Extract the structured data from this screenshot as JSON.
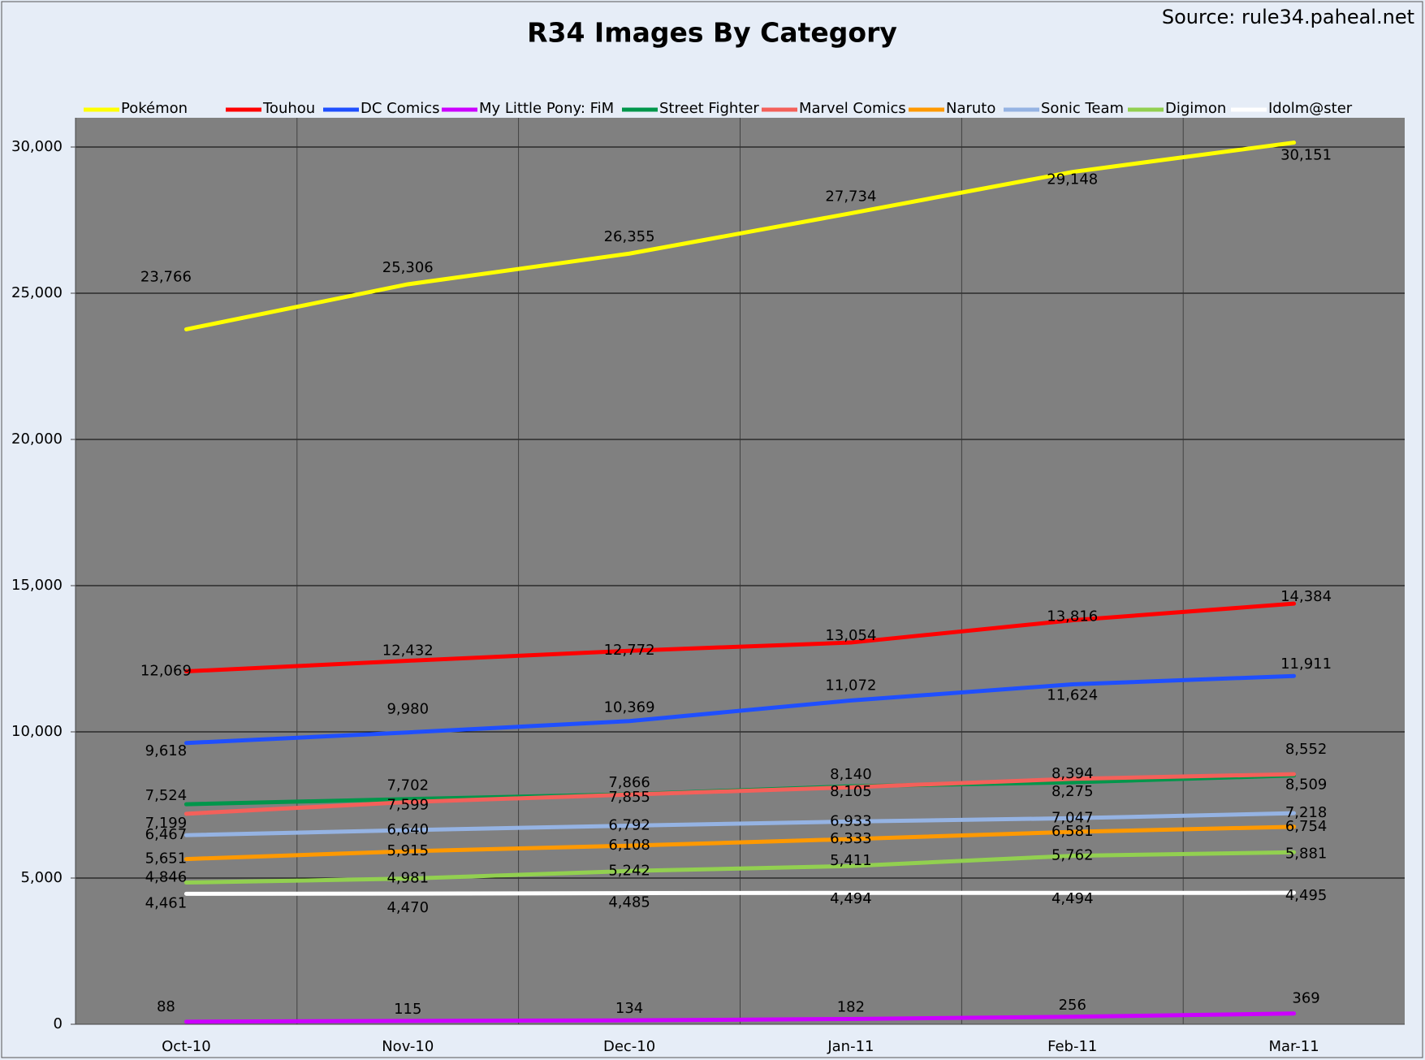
{
  "chart_data": {
    "type": "line",
    "title": "R34 Images By Category",
    "source": "Source: rule34.paheal.net",
    "categories": [
      "Oct-10",
      "Nov-10",
      "Dec-10",
      "Jan-11",
      "Feb-11",
      "Mar-11"
    ],
    "ylim": [
      0,
      31000
    ],
    "yticks": [
      0,
      {
        "value": 5000,
        "label": "5,000"
      },
      {
        "value": 10000,
        "label": "10,000"
      },
      {
        "value": 15000,
        "label": "15,000"
      },
      {
        "value": 20000,
        "label": "20,000"
      },
      {
        "value": 25000,
        "label": "25,000"
      },
      {
        "value": 30000,
        "label": "30,000"
      }
    ],
    "grid": true,
    "series": [
      {
        "name": "Pokémon",
        "color": "#ffff00",
        "values": [
          23766,
          25306,
          26355,
          27734,
          29148,
          30151
        ],
        "value_labels": [
          "23,766",
          "25,306",
          "26,355",
          "27,734",
          "29,148",
          "30,151"
        ]
      },
      {
        "name": "Touhou",
        "color": "#ff0000",
        "values": [
          12069,
          12432,
          12772,
          13054,
          13816,
          14384
        ],
        "value_labels": [
          "12,069",
          "12,432",
          "12,772",
          "13,054",
          "13,816",
          "14,384"
        ]
      },
      {
        "name": "DC Comics",
        "color": "#1f4fff",
        "values": [
          9618,
          9980,
          10369,
          11072,
          11624,
          11911
        ],
        "value_labels": [
          "9,618",
          "9,980",
          "10,369",
          "11,072",
          "11,624",
          "11,911"
        ]
      },
      {
        "name": "My Little Pony: FiM",
        "color": "#cc00ff",
        "values": [
          88,
          115,
          134,
          182,
          256,
          369
        ],
        "value_labels": [
          "88",
          "115",
          "134",
          "182",
          "256",
          "369"
        ]
      },
      {
        "name": "Street Fighter",
        "color": "#00964b",
        "values": [
          7524,
          7702,
          7866,
          8140,
          8275,
          8509
        ],
        "value_labels": [
          "7,524",
          "7,702",
          "7,866",
          "8,140",
          "8,275",
          "8,509"
        ]
      },
      {
        "name": "Marvel Comics",
        "color": "#f4605a",
        "values": [
          7199,
          7599,
          7855,
          8105,
          8394,
          8552
        ],
        "value_labels": [
          "7,199",
          "7,599",
          "7,855",
          "8,105",
          "8,394",
          "8,552"
        ]
      },
      {
        "name": "Naruto",
        "color": "#ff9900",
        "values": [
          5651,
          5915,
          6108,
          6333,
          6581,
          6754
        ],
        "value_labels": [
          "5,651",
          "5,915",
          "6,108",
          "6,333",
          "6,581",
          "6,754"
        ]
      },
      {
        "name": "Sonic Team",
        "color": "#95b3e3",
        "values": [
          6467,
          6640,
          6792,
          6933,
          7047,
          7218
        ],
        "value_labels": [
          "6,467",
          "6,640",
          "6,792",
          "6,933",
          "7,047",
          "7,218"
        ]
      },
      {
        "name": "Digimon",
        "color": "#92d050",
        "values": [
          4846,
          4981,
          5242,
          5411,
          5762,
          5881
        ],
        "value_labels": [
          "4,846",
          "4,981",
          "5,242",
          "5,411",
          "5,762",
          "5,881"
        ]
      },
      {
        "name": "Idolm@ster",
        "color": "#ffffff",
        "values": [
          4461,
          4470,
          4485,
          4494,
          4494,
          4495
        ],
        "value_labels": [
          "4,461",
          "4,470",
          "4,485",
          "4,494",
          "4,494",
          "4,495"
        ]
      }
    ]
  }
}
